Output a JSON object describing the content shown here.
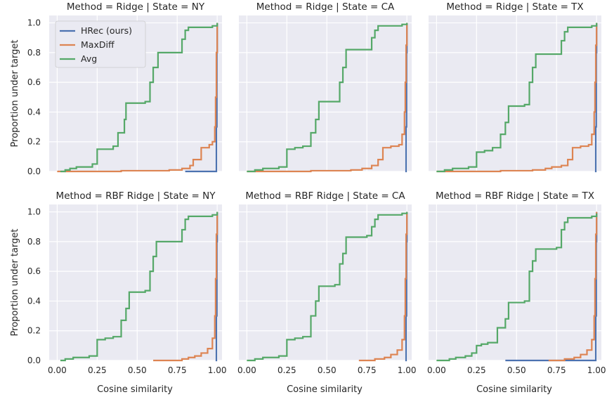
{
  "chart_data": {
    "type": "line",
    "step": "post",
    "xlabel": "Cosine similarity",
    "ylabel": "Proportion under target",
    "xlim": [
      -0.05,
      1.03
    ],
    "ylim": [
      0,
      1.05
    ],
    "xticks": [
      "0.00",
      "0.25",
      "0.50",
      "0.75",
      "1.00"
    ],
    "yticks": [
      "0.0",
      "0.2",
      "0.4",
      "0.6",
      "0.8",
      "1.0"
    ],
    "grid": true,
    "legend": {
      "placement": "top-left",
      "entries": [
        {
          "name": "HRec (ours)",
          "color": "#4c72b0"
        },
        {
          "name": "MaxDiff",
          "color": "#dd8452"
        },
        {
          "name": "Avg",
          "color": "#55a868"
        }
      ]
    },
    "panels": [
      {
        "title": "Method = Ridge | State = NY",
        "series": [
          {
            "name": "HRec (ours)",
            "x": [
              0.8,
              0.99,
              0.995,
              0.998,
              1.0
            ],
            "y": [
              0.0,
              0.0,
              0.3,
              0.8,
              1.0
            ]
          },
          {
            "name": "MaxDiff",
            "x": [
              0.0,
              0.4,
              0.7,
              0.78,
              0.83,
              0.85,
              0.9,
              0.95,
              0.97,
              0.985,
              0.99,
              0.995,
              1.0
            ],
            "y": [
              0.0,
              0.005,
              0.01,
              0.02,
              0.04,
              0.08,
              0.16,
              0.18,
              0.2,
              0.3,
              0.5,
              0.8,
              1.0
            ]
          },
          {
            "name": "Avg",
            "x": [
              0.02,
              0.05,
              0.08,
              0.12,
              0.2,
              0.22,
              0.25,
              0.3,
              0.35,
              0.38,
              0.42,
              0.43,
              0.45,
              0.5,
              0.55,
              0.58,
              0.6,
              0.63,
              0.65,
              0.75,
              0.78,
              0.8,
              0.82,
              0.97,
              1.0
            ],
            "y": [
              0.0,
              0.01,
              0.02,
              0.03,
              0.03,
              0.05,
              0.15,
              0.15,
              0.17,
              0.26,
              0.35,
              0.46,
              0.46,
              0.46,
              0.47,
              0.6,
              0.7,
              0.8,
              0.8,
              0.8,
              0.89,
              0.95,
              0.97,
              0.98,
              1.0
            ]
          }
        ]
      },
      {
        "title": "Method = Ridge | State = CA",
        "series": [
          {
            "name": "HRec (ours)",
            "x": [
              0.99,
              0.995,
              0.998,
              1.0
            ],
            "y": [
              0.0,
              0.3,
              0.8,
              1.0
            ]
          },
          {
            "name": "MaxDiff",
            "x": [
              0.0,
              0.4,
              0.65,
              0.72,
              0.78,
              0.82,
              0.85,
              0.9,
              0.95,
              0.97,
              0.985,
              0.99,
              0.995,
              1.0
            ],
            "y": [
              0.0,
              0.005,
              0.01,
              0.02,
              0.04,
              0.08,
              0.16,
              0.17,
              0.18,
              0.25,
              0.4,
              0.6,
              0.85,
              1.0
            ]
          },
          {
            "name": "Avg",
            "x": [
              0.0,
              0.05,
              0.1,
              0.15,
              0.2,
              0.25,
              0.3,
              0.35,
              0.4,
              0.43,
              0.45,
              0.5,
              0.55,
              0.58,
              0.6,
              0.62,
              0.65,
              0.75,
              0.78,
              0.8,
              0.82,
              0.97,
              1.0
            ],
            "y": [
              0.0,
              0.01,
              0.02,
              0.02,
              0.03,
              0.15,
              0.16,
              0.17,
              0.26,
              0.35,
              0.47,
              0.47,
              0.47,
              0.6,
              0.7,
              0.82,
              0.82,
              0.82,
              0.9,
              0.95,
              0.98,
              0.99,
              1.0
            ]
          }
        ]
      },
      {
        "title": "Method = Ridge | State = TX",
        "series": [
          {
            "name": "HRec (ours)",
            "x": [
              0.99,
              0.995,
              0.998,
              1.0
            ],
            "y": [
              0.0,
              0.3,
              0.8,
              1.0
            ]
          },
          {
            "name": "MaxDiff",
            "x": [
              0.0,
              0.4,
              0.6,
              0.68,
              0.72,
              0.78,
              0.82,
              0.85,
              0.9,
              0.95,
              0.97,
              0.985,
              0.99,
              0.995,
              1.0
            ],
            "y": [
              0.0,
              0.005,
              0.01,
              0.02,
              0.03,
              0.04,
              0.08,
              0.16,
              0.17,
              0.18,
              0.25,
              0.4,
              0.6,
              0.85,
              1.0
            ]
          },
          {
            "name": "Avg",
            "x": [
              0.0,
              0.05,
              0.1,
              0.15,
              0.2,
              0.25,
              0.3,
              0.35,
              0.4,
              0.43,
              0.45,
              0.5,
              0.55,
              0.58,
              0.6,
              0.62,
              0.65,
              0.75,
              0.78,
              0.8,
              0.82,
              0.97,
              1.0
            ],
            "y": [
              0.0,
              0.01,
              0.02,
              0.02,
              0.03,
              0.13,
              0.14,
              0.16,
              0.25,
              0.33,
              0.44,
              0.44,
              0.45,
              0.6,
              0.7,
              0.79,
              0.79,
              0.79,
              0.88,
              0.94,
              0.97,
              0.98,
              1.0
            ]
          }
        ]
      },
      {
        "title": "Method = RBF Ridge | State = NY",
        "series": [
          {
            "name": "HRec (ours)",
            "x": [
              0.99,
              0.995,
              0.998,
              1.0
            ],
            "y": [
              0.0,
              0.3,
              0.8,
              1.0
            ]
          },
          {
            "name": "MaxDiff",
            "x": [
              0.6,
              0.78,
              0.82,
              0.86,
              0.9,
              0.94,
              0.97,
              0.985,
              0.99,
              0.995,
              1.0
            ],
            "y": [
              0.0,
              0.01,
              0.02,
              0.03,
              0.05,
              0.08,
              0.15,
              0.3,
              0.55,
              0.85,
              1.0
            ]
          },
          {
            "name": "Avg",
            "x": [
              0.02,
              0.05,
              0.1,
              0.15,
              0.2,
              0.25,
              0.3,
              0.35,
              0.4,
              0.43,
              0.45,
              0.5,
              0.55,
              0.58,
              0.6,
              0.62,
              0.65,
              0.75,
              0.78,
              0.8,
              0.82,
              0.97,
              1.0
            ],
            "y": [
              0.0,
              0.01,
              0.02,
              0.02,
              0.03,
              0.14,
              0.15,
              0.16,
              0.27,
              0.35,
              0.46,
              0.46,
              0.47,
              0.6,
              0.7,
              0.8,
              0.8,
              0.8,
              0.88,
              0.95,
              0.97,
              0.98,
              1.0
            ]
          }
        ]
      },
      {
        "title": "Method = RBF Ridge | State = CA",
        "series": [
          {
            "name": "HRec (ours)",
            "x": [
              0.99,
              0.995,
              0.998,
              1.0
            ],
            "y": [
              0.0,
              0.3,
              0.8,
              1.0
            ]
          },
          {
            "name": "MaxDiff",
            "x": [
              0.7,
              0.8,
              0.86,
              0.9,
              0.94,
              0.97,
              0.985,
              0.99,
              0.995,
              1.0
            ],
            "y": [
              0.0,
              0.01,
              0.02,
              0.04,
              0.07,
              0.14,
              0.3,
              0.55,
              0.85,
              1.0
            ]
          },
          {
            "name": "Avg",
            "x": [
              0.0,
              0.05,
              0.1,
              0.15,
              0.2,
              0.25,
              0.3,
              0.35,
              0.4,
              0.43,
              0.45,
              0.5,
              0.55,
              0.58,
              0.6,
              0.62,
              0.65,
              0.75,
              0.78,
              0.8,
              0.82,
              0.97,
              1.0
            ],
            "y": [
              0.0,
              0.01,
              0.02,
              0.02,
              0.03,
              0.14,
              0.15,
              0.16,
              0.3,
              0.4,
              0.5,
              0.5,
              0.51,
              0.65,
              0.72,
              0.83,
              0.83,
              0.84,
              0.9,
              0.95,
              0.98,
              0.99,
              1.0
            ]
          }
        ]
      },
      {
        "title": "Method = RBF Ridge | State = TX",
        "series": [
          {
            "name": "HRec (ours)",
            "x": [
              0.43,
              0.99,
              0.995,
              0.998,
              1.0
            ],
            "y": [
              0.0,
              0.0,
              0.3,
              0.8,
              1.0
            ]
          },
          {
            "name": "MaxDiff",
            "x": [
              0.7,
              0.8,
              0.86,
              0.9,
              0.94,
              0.97,
              0.985,
              0.99,
              0.995,
              1.0
            ],
            "y": [
              0.0,
              0.01,
              0.02,
              0.04,
              0.07,
              0.14,
              0.3,
              0.55,
              0.85,
              1.0
            ]
          },
          {
            "name": "Avg",
            "x": [
              0.0,
              0.08,
              0.12,
              0.18,
              0.22,
              0.25,
              0.28,
              0.32,
              0.38,
              0.43,
              0.45,
              0.5,
              0.55,
              0.58,
              0.6,
              0.62,
              0.65,
              0.75,
              0.78,
              0.8,
              0.82,
              0.97,
              1.0
            ],
            "y": [
              0.0,
              0.01,
              0.02,
              0.03,
              0.05,
              0.1,
              0.11,
              0.12,
              0.22,
              0.28,
              0.39,
              0.39,
              0.4,
              0.6,
              0.67,
              0.75,
              0.75,
              0.76,
              0.88,
              0.93,
              0.96,
              0.97,
              0.99
            ]
          }
        ]
      }
    ]
  }
}
